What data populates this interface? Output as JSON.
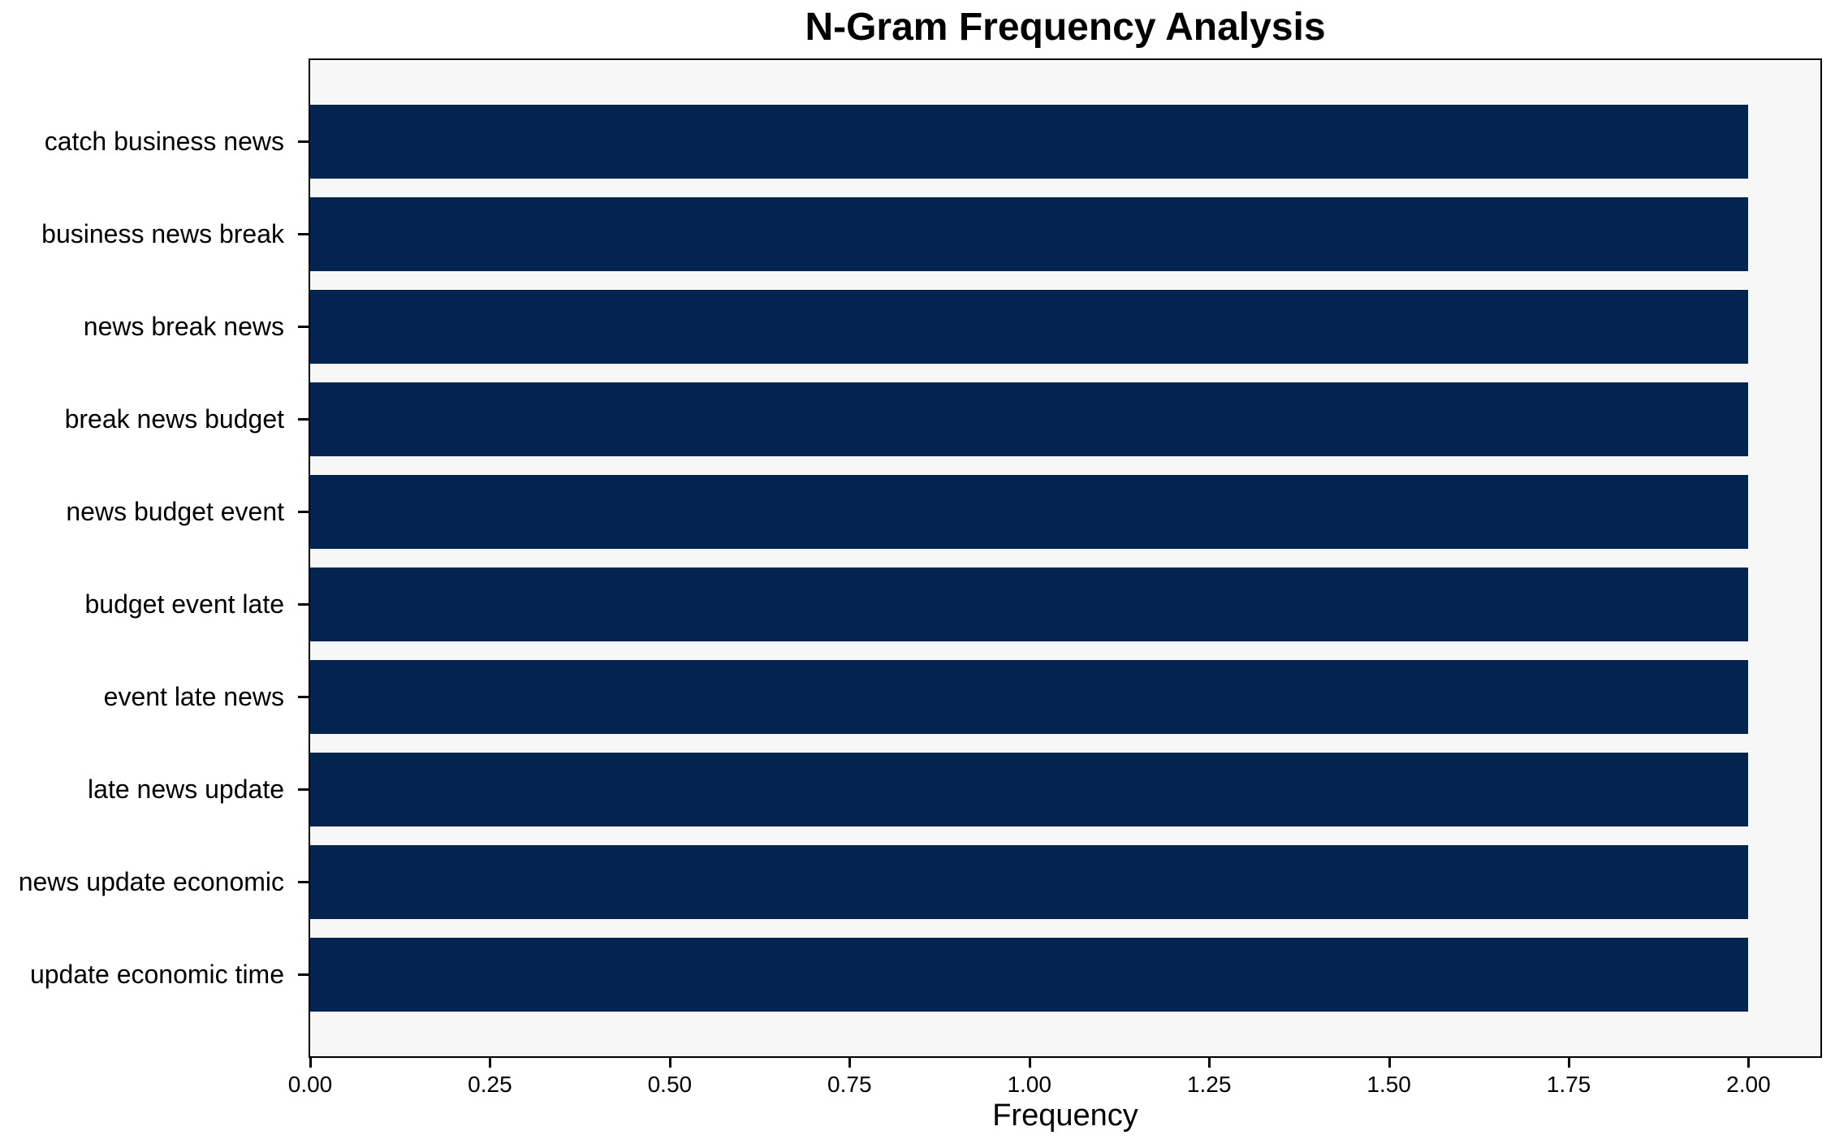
{
  "chart_data": {
    "type": "bar",
    "orientation": "horizontal",
    "title": "N-Gram Frequency Analysis",
    "xlabel": "Frequency",
    "ylabel": "",
    "categories": [
      "catch business news",
      "business news break",
      "news break news",
      "break news budget",
      "news budget event",
      "budget event late",
      "event late news",
      "late news update",
      "news update economic",
      "update economic time"
    ],
    "values": [
      2,
      2,
      2,
      2,
      2,
      2,
      2,
      2,
      2,
      2
    ],
    "xlim": [
      0,
      2.1
    ],
    "xticks": [
      0,
      0.25,
      0.5,
      0.75,
      1.0,
      1.25,
      1.5,
      1.75,
      2.0
    ],
    "xtick_labels": [
      "0.00",
      "0.25",
      "0.50",
      "0.75",
      "1.00",
      "1.25",
      "1.50",
      "1.75",
      "2.00"
    ],
    "grid": false,
    "legend": "none",
    "colors": {
      "bar": "#02244e",
      "plot_background": "#f7f7f7",
      "figure_background": "#ffffff",
      "text": "#000000",
      "spine": "#000000"
    }
  }
}
